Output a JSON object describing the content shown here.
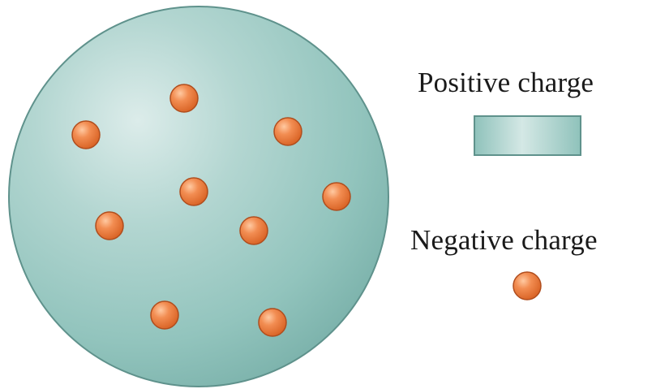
{
  "model": {
    "sphere_color": "#9ccbc4",
    "sphere_edge_color": "#5f928c",
    "electron_color": "#ec7a3e",
    "electron_edge_color": "#b04d1d",
    "electron_count": 10
  },
  "legend": {
    "positive_label": "Positive charge",
    "negative_label": "Negative charge"
  }
}
